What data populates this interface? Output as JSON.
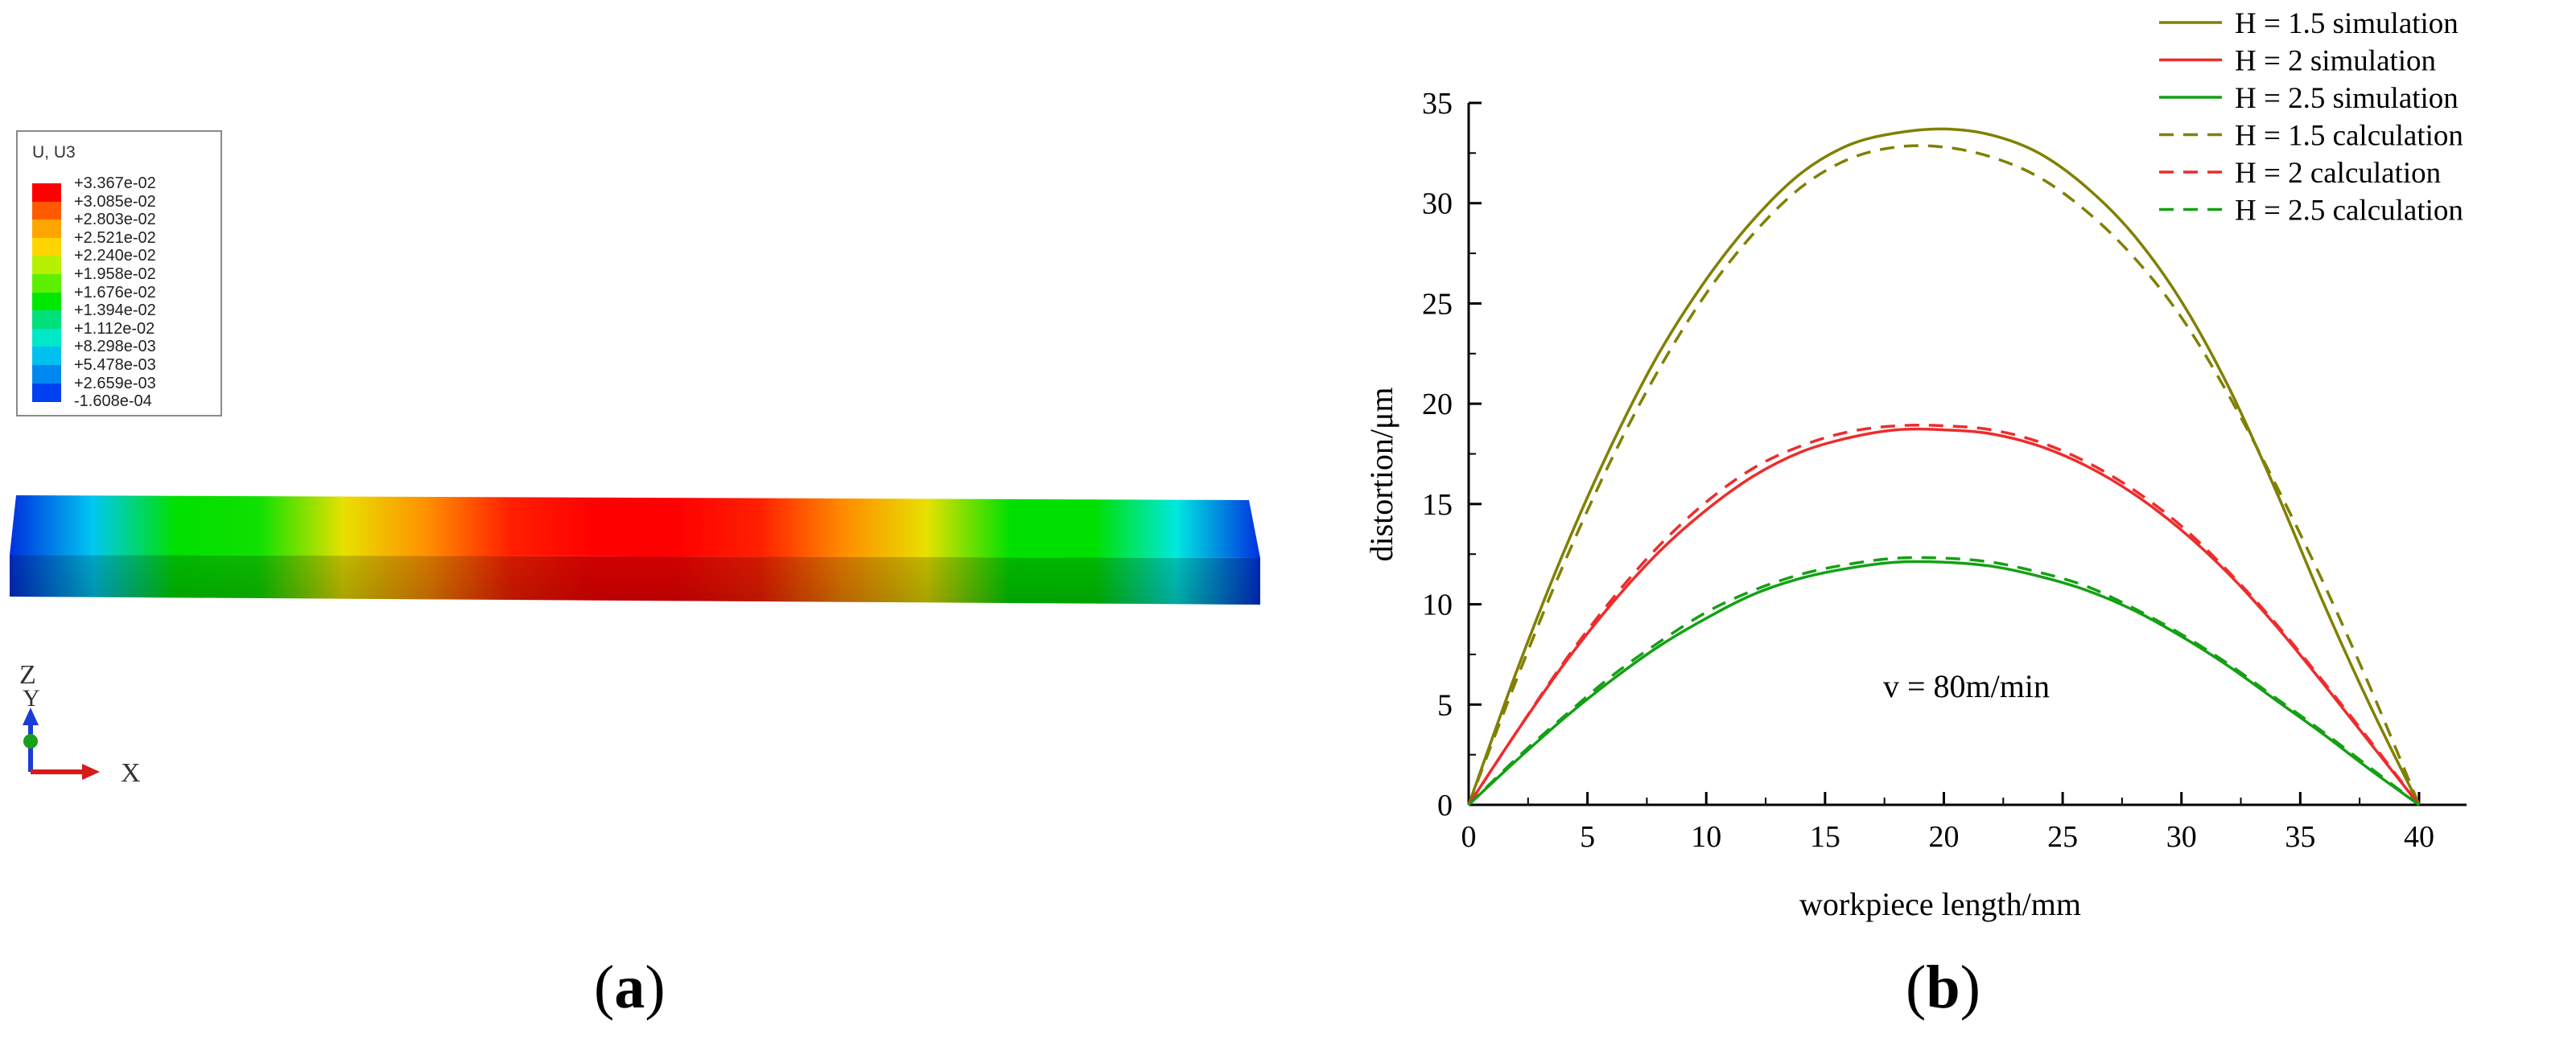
{
  "panel_a": {
    "label": "a",
    "legend_title": "U, U3",
    "legend_values": [
      "+3.367e-02",
      "+3.085e-02",
      "+2.803e-02",
      "+2.521e-02",
      "+2.240e-02",
      "+1.958e-02",
      "+1.676e-02",
      "+1.394e-02",
      "+1.112e-02",
      "+8.298e-03",
      "+5.478e-03",
      "+2.659e-03",
      "-1.608e-04"
    ],
    "legend_colors": [
      "#ff0000",
      "#ff5a00",
      "#ffa500",
      "#ffd400",
      "#b7f000",
      "#5cf000",
      "#00e800",
      "#00e07a",
      "#00e8c8",
      "#00c0f0",
      "#0088f0",
      "#0040f0"
    ],
    "bar_gradient": [
      "#0030e0",
      "#00c8f0",
      "#00e000",
      "#10e000",
      "#e8e000",
      "#ff9000",
      "#ff2000",
      "#ff0000",
      "#ff0000",
      "#ff2000",
      "#ff8c00",
      "#e8e000",
      "#00e000",
      "#00e000",
      "#00e8e0",
      "#0030e0"
    ],
    "axes": {
      "z": "Z",
      "y": "Y",
      "x": "X"
    }
  },
  "panel_b": {
    "label": "b",
    "annotation": "v = 80m/min",
    "chart_data": {
      "type": "line",
      "xlabel": "workpiece length/mm",
      "ylabel": "distortion/μm",
      "xlim": [
        0,
        42
      ],
      "ylim": [
        0,
        35
      ],
      "xticks": [
        0,
        5,
        10,
        15,
        20,
        25,
        30,
        35,
        40
      ],
      "yticks": [
        0,
        5,
        10,
        15,
        20,
        25,
        30,
        35
      ],
      "x": [
        0,
        2,
        4,
        6,
        8,
        10,
        12,
        14,
        16,
        18,
        20,
        22,
        24,
        26,
        28,
        30,
        32,
        34,
        36,
        38,
        40
      ],
      "series": [
        {
          "name": "H = 1.5 simulation",
          "style": "solid",
          "color": "#808000",
          "values": [
            0,
            6.6,
            12.6,
            17.9,
            22.5,
            26.2,
            29.2,
            31.5,
            32.9,
            33.5,
            33.7,
            33.4,
            32.5,
            30.8,
            28.4,
            25.1,
            20.8,
            15.6,
            10.0,
            4.8,
            0
          ]
        },
        {
          "name": "H = 2 simulation",
          "style": "solid",
          "color": "#ee2c2c",
          "values": [
            0,
            3.6,
            7.0,
            10.0,
            12.6,
            14.7,
            16.4,
            17.6,
            18.3,
            18.7,
            18.7,
            18.5,
            17.9,
            16.9,
            15.5,
            13.7,
            11.5,
            8.9,
            6.0,
            3.0,
            0
          ]
        },
        {
          "name": "H = 2.5 simulation",
          "style": "solid",
          "color": "#14a014",
          "values": [
            0,
            2.2,
            4.3,
            6.2,
            7.9,
            9.3,
            10.5,
            11.3,
            11.8,
            12.1,
            12.1,
            11.9,
            11.4,
            10.7,
            9.7,
            8.4,
            6.9,
            5.2,
            3.5,
            1.7,
            0
          ]
        },
        {
          "name": "H = 1.5 calculation",
          "style": "dashed",
          "color": "#808000",
          "values": [
            0,
            6.2,
            12.0,
            17.2,
            21.7,
            25.5,
            28.5,
            30.8,
            32.2,
            32.8,
            32.8,
            32.3,
            31.3,
            29.6,
            27.3,
            24.3,
            20.4,
            15.9,
            11.0,
            5.7,
            0
          ]
        },
        {
          "name": "H = 2 calculation",
          "style": "dashed",
          "color": "#ee2c2c",
          "values": [
            0,
            3.6,
            7.1,
            10.2,
            12.9,
            15.1,
            16.8,
            17.9,
            18.6,
            18.9,
            18.9,
            18.7,
            18.1,
            17.1,
            15.7,
            13.9,
            11.6,
            9.0,
            6.1,
            3.1,
            0
          ]
        },
        {
          "name": "H = 2.5 calculation",
          "style": "dashed",
          "color": "#14a014",
          "values": [
            0,
            2.3,
            4.4,
            6.4,
            8.1,
            9.6,
            10.7,
            11.5,
            12.0,
            12.3,
            12.3,
            12.1,
            11.6,
            10.9,
            9.8,
            8.5,
            7.0,
            5.3,
            3.6,
            1.8,
            0
          ]
        }
      ],
      "legend_position": "top-right"
    }
  }
}
